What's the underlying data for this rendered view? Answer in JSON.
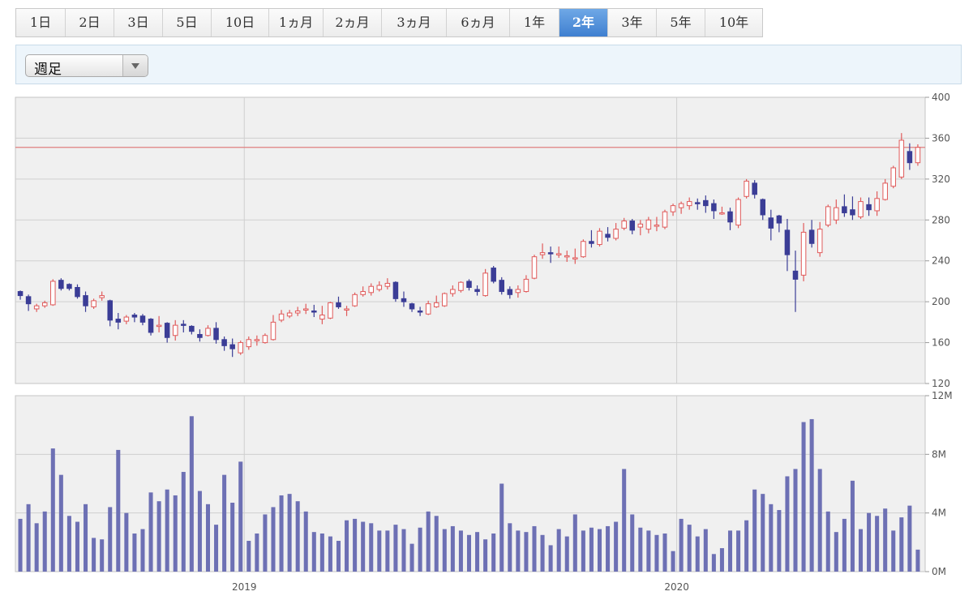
{
  "tabs": [
    {
      "label": "1日"
    },
    {
      "label": "2日"
    },
    {
      "label": "3日"
    },
    {
      "label": "5日"
    },
    {
      "label": "10日"
    },
    {
      "label": "1ヵ月"
    },
    {
      "label": "2ヵ月"
    },
    {
      "label": "3ヵ月"
    },
    {
      "label": "6ヵ月"
    },
    {
      "label": "1年"
    },
    {
      "label": "2年",
      "active": true
    },
    {
      "label": "3年"
    },
    {
      "label": "5年"
    },
    {
      "label": "10年"
    }
  ],
  "interval_select": {
    "value": "週足"
  },
  "colors": {
    "up": "#e05a5a",
    "down": "#3b3d96",
    "volume": "#6d70b4",
    "reference_line": "#e08080"
  },
  "chart_data": [
    {
      "type": "candlestick",
      "title": "",
      "ylim": [
        120,
        400
      ],
      "yticks": [
        120,
        160,
        200,
        240,
        280,
        320,
        360,
        400
      ],
      "ytick_labels": [
        "120",
        "160",
        "200",
        "240",
        "280",
        "320",
        "360",
        "400"
      ],
      "x_labels": [
        {
          "index": 28,
          "label": "2019"
        },
        {
          "index": 81,
          "label": "2020"
        }
      ],
      "reference_line": 351,
      "grid": true,
      "ohlc": [
        [
          210,
          211,
          202,
          206
        ],
        [
          205,
          207,
          191,
          198
        ],
        [
          193,
          198,
          190,
          196
        ],
        [
          196,
          201,
          194,
          199
        ],
        [
          197,
          222,
          196,
          220
        ],
        [
          221,
          223,
          211,
          213
        ],
        [
          217,
          218,
          211,
          213
        ],
        [
          214,
          217,
          203,
          205
        ],
        [
          206,
          210,
          190,
          196
        ],
        [
          195,
          203,
          193,
          201
        ],
        [
          204,
          210,
          201,
          206
        ],
        [
          201,
          202,
          176,
          182
        ],
        [
          183,
          189,
          173,
          180
        ],
        [
          181,
          187,
          178,
          185
        ],
        [
          187,
          189,
          180,
          185
        ],
        [
          186,
          188,
          177,
          180
        ],
        [
          183,
          184,
          167,
          170
        ],
        [
          176,
          186,
          170,
          177
        ],
        [
          179,
          180,
          160,
          165
        ],
        [
          167,
          182,
          162,
          177
        ],
        [
          178,
          182,
          170,
          177
        ],
        [
          176,
          177,
          168,
          171
        ],
        [
          168,
          173,
          161,
          165
        ],
        [
          167,
          177,
          166,
          174
        ],
        [
          174,
          180,
          159,
          163
        ],
        [
          163,
          166,
          152,
          157
        ],
        [
          158,
          164,
          146,
          154
        ],
        [
          150,
          162,
          148,
          160
        ],
        [
          156,
          166,
          153,
          163
        ],
        [
          163,
          167,
          157,
          163
        ],
        [
          160,
          169,
          159,
          167
        ],
        [
          163,
          187,
          162,
          180
        ],
        [
          182,
          192,
          180,
          188
        ],
        [
          186,
          192,
          184,
          189
        ],
        [
          189,
          195,
          186,
          191
        ],
        [
          192,
          198,
          188,
          193
        ],
        [
          191,
          197,
          185,
          190
        ],
        [
          183,
          196,
          178,
          187
        ],
        [
          184,
          200,
          183,
          199
        ],
        [
          199,
          205,
          193,
          195
        ],
        [
          192,
          196,
          186,
          193
        ],
        [
          196,
          209,
          195,
          207
        ],
        [
          207,
          215,
          205,
          210
        ],
        [
          209,
          218,
          206,
          215
        ],
        [
          212,
          220,
          210,
          216
        ],
        [
          215,
          223,
          212,
          218
        ],
        [
          219,
          220,
          200,
          203
        ],
        [
          203,
          210,
          195,
          200
        ],
        [
          198,
          199,
          190,
          193
        ],
        [
          191,
          195,
          186,
          190
        ],
        [
          188,
          201,
          187,
          198
        ],
        [
          195,
          206,
          194,
          199
        ],
        [
          196,
          209,
          195,
          208
        ],
        [
          208,
          216,
          205,
          212
        ],
        [
          211,
          220,
          209,
          219
        ],
        [
          220,
          222,
          211,
          214
        ],
        [
          212,
          216,
          206,
          210
        ],
        [
          206,
          232,
          205,
          228
        ],
        [
          233,
          235,
          218,
          220
        ],
        [
          221,
          224,
          207,
          210
        ],
        [
          212,
          215,
          203,
          207
        ],
        [
          209,
          216,
          204,
          212
        ],
        [
          210,
          226,
          209,
          222
        ],
        [
          223,
          246,
          222,
          244
        ],
        [
          246,
          257,
          242,
          248
        ],
        [
          248,
          254,
          238,
          247
        ],
        [
          247,
          254,
          243,
          247
        ],
        [
          245,
          250,
          239,
          245
        ],
        [
          242,
          252,
          237,
          243
        ],
        [
          244,
          261,
          243,
          259
        ],
        [
          259,
          270,
          253,
          257
        ],
        [
          256,
          272,
          254,
          269
        ],
        [
          266,
          273,
          259,
          263
        ],
        [
          262,
          277,
          260,
          271
        ],
        [
          272,
          282,
          270,
          279
        ],
        [
          279,
          281,
          266,
          270
        ],
        [
          273,
          280,
          265,
          276
        ],
        [
          271,
          283,
          267,
          280
        ],
        [
          275,
          283,
          269,
          275
        ],
        [
          273,
          290,
          271,
          288
        ],
        [
          288,
          296,
          284,
          294
        ],
        [
          292,
          298,
          286,
          296
        ],
        [
          294,
          302,
          290,
          298
        ],
        [
          297,
          301,
          290,
          296
        ],
        [
          299,
          304,
          287,
          294
        ],
        [
          296,
          300,
          281,
          289
        ],
        [
          287,
          293,
          285,
          287
        ],
        [
          288,
          292,
          270,
          278
        ],
        [
          275,
          302,
          272,
          300
        ],
        [
          303,
          320,
          301,
          318
        ],
        [
          316,
          319,
          301,
          305
        ],
        [
          300,
          301,
          280,
          285
        ],
        [
          282,
          290,
          260,
          272
        ],
        [
          284,
          285,
          268,
          277
        ],
        [
          270,
          281,
          230,
          246
        ],
        [
          230,
          250,
          190,
          222
        ],
        [
          226,
          277,
          220,
          268
        ],
        [
          270,
          280,
          253,
          257
        ],
        [
          248,
          278,
          244,
          271
        ],
        [
          275,
          295,
          273,
          293
        ],
        [
          280,
          300,
          276,
          292
        ],
        [
          293,
          305,
          283,
          287
        ],
        [
          290,
          303,
          280,
          285
        ],
        [
          283,
          302,
          281,
          298
        ],
        [
          295,
          302,
          284,
          290
        ],
        [
          289,
          308,
          284,
          301
        ],
        [
          300,
          320,
          299,
          316
        ],
        [
          313,
          333,
          311,
          331
        ],
        [
          322,
          365,
          320,
          358
        ],
        [
          347,
          355,
          329,
          336
        ],
        [
          336,
          354,
          333,
          351
        ]
      ]
    },
    {
      "type": "bar",
      "title": "",
      "ylim": [
        0,
        12
      ],
      "yticks": [
        0,
        4,
        8,
        12
      ],
      "ytick_labels": [
        "0M",
        "4M",
        "8M",
        "12M"
      ],
      "x_labels": [
        {
          "index": 28,
          "label": "2019"
        },
        {
          "index": 81,
          "label": "2020"
        }
      ],
      "grid": true,
      "values": [
        3.6,
        4.6,
        3.3,
        4.1,
        8.4,
        6.6,
        3.8,
        3.4,
        4.6,
        2.3,
        2.2,
        4.4,
        8.3,
        4.0,
        2.6,
        2.9,
        5.4,
        4.8,
        5.6,
        5.2,
        6.8,
        10.6,
        5.5,
        4.6,
        3.2,
        6.6,
        4.7,
        7.5,
        2.1,
        2.6,
        3.9,
        4.4,
        5.2,
        5.3,
        4.8,
        4.1,
        2.7,
        2.6,
        2.4,
        2.1,
        3.5,
        3.6,
        3.4,
        3.3,
        2.8,
        2.8,
        3.2,
        2.9,
        1.9,
        3.0,
        4.1,
        3.8,
        2.9,
        3.1,
        2.8,
        2.5,
        2.7,
        2.2,
        2.6,
        6.0,
        3.3,
        2.8,
        2.7,
        3.1,
        2.5,
        1.8,
        2.9,
        2.4,
        3.9,
        2.8,
        3.0,
        2.9,
        3.1,
        3.4,
        7.0,
        3.9,
        3.0,
        2.8,
        2.5,
        2.6,
        1.4,
        3.6,
        3.2,
        2.4,
        2.9,
        1.2,
        1.6,
        2.8,
        2.8,
        3.5,
        5.6,
        5.3,
        4.6,
        4.2,
        6.5,
        7.0,
        10.2,
        10.4,
        7.0,
        4.1,
        2.7,
        3.6,
        6.2,
        2.9,
        4.0,
        3.8,
        4.3,
        2.8,
        3.7,
        4.5,
        1.5
      ]
    }
  ]
}
